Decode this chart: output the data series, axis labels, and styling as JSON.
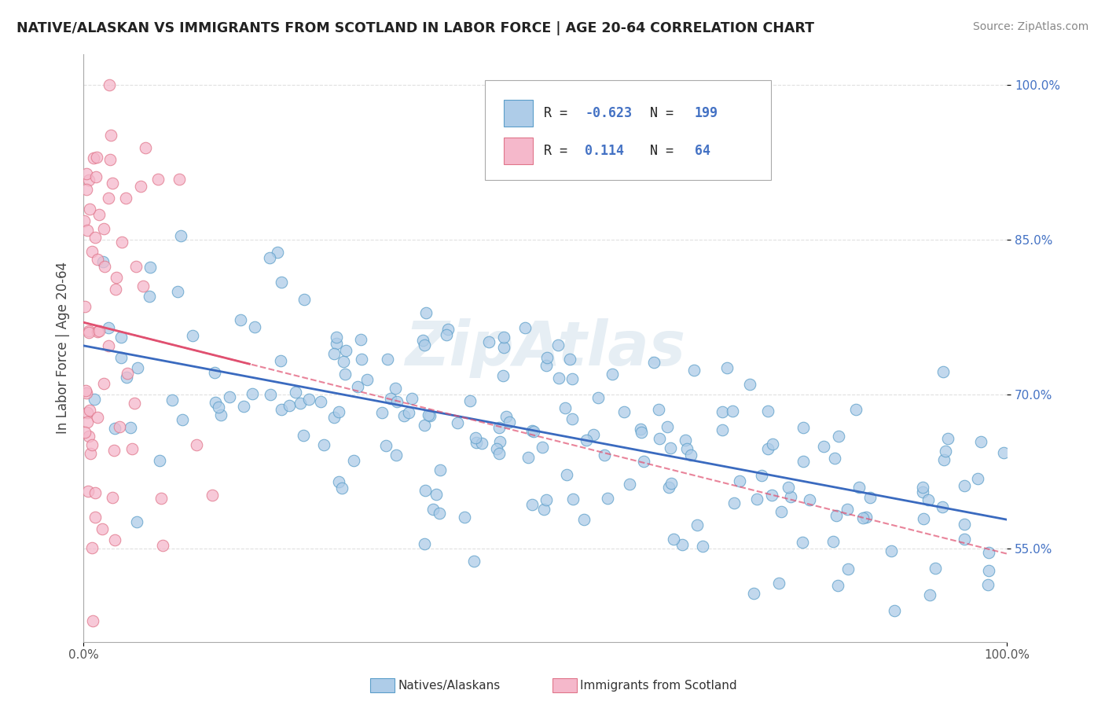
{
  "title": "NATIVE/ALASKAN VS IMMIGRANTS FROM SCOTLAND IN LABOR FORCE | AGE 20-64 CORRELATION CHART",
  "source": "Source: ZipAtlas.com",
  "ylabel": "In Labor Force | Age 20-64",
  "xlim": [
    0.0,
    1.0
  ],
  "ylim": [
    0.46,
    1.03
  ],
  "yticks": [
    0.55,
    0.7,
    0.85,
    1.0
  ],
  "ytick_labels": [
    "55.0%",
    "70.0%",
    "85.0%",
    "100.0%"
  ],
  "xtick_labels": [
    "0.0%",
    "100.0%"
  ],
  "legend_r1": "-0.623",
  "legend_n1": "199",
  "legend_r2": "0.114",
  "legend_n2": "64",
  "blue_color": "#aecce8",
  "blue_edge": "#5b9ec9",
  "blue_line": "#3a6abf",
  "pink_color": "#f5b8cb",
  "pink_edge": "#e0758a",
  "pink_line": "#e05070",
  "watermark": "ZipAtlas",
  "background": "#ffffff",
  "grid_color": "#e0e0e0"
}
